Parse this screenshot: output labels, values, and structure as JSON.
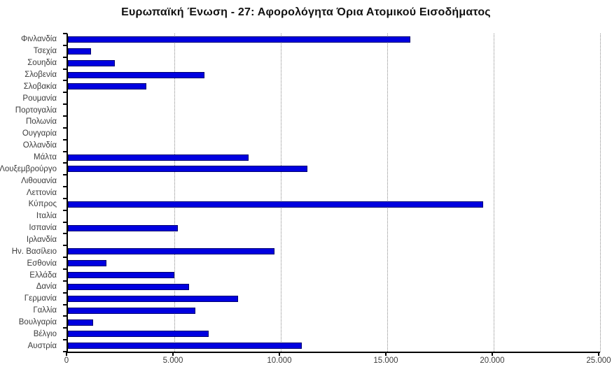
{
  "chart_data": {
    "type": "bar",
    "orientation": "horizontal",
    "title": "Ευρωπαϊκή Ένωση - 27: Αφορολόγητα Όρια Ατομικού Εισοδήματος",
    "categories": [
      "Φινλανδία",
      "Τσεχία",
      "Σουηδία",
      "Σλοβενία",
      "Σλοβακία",
      "Ρουμανία",
      "Πορτογαλία",
      "Πολωνία",
      "Ουγγαρία",
      "Ολλανδία",
      "Μάλτα",
      "Λουξεμβρούργο",
      "Λιθουανία",
      "Λεττονία",
      "Κύπρος",
      "Ιταλία",
      "Ισπανία",
      "Ιρλανδία",
      "Ην. Βασίλειο",
      "Εσθονία",
      "Ελλάδα",
      "Δανία",
      "Γερμανία",
      "Γαλλία",
      "Βουλγαρία",
      "Βέλγιο",
      "Αυστρία"
    ],
    "values": [
      16100,
      1100,
      2200,
      6400,
      3700,
      0,
      0,
      0,
      0,
      0,
      8500,
      11250,
      0,
      0,
      19500,
      0,
      5150,
      0,
      9700,
      1800,
      5000,
      5700,
      8000,
      6000,
      1200,
      6600,
      11000
    ],
    "xlim": [
      0,
      25000
    ],
    "x_ticks": [
      0,
      5000,
      10000,
      15000,
      20000,
      25000
    ],
    "x_tick_labels": [
      "0",
      "5.000",
      "10.000",
      "15.000",
      "20.000",
      "25.000"
    ],
    "legend": "none",
    "grid": "vertical-dotted",
    "bar_color": "#0000e0",
    "bar_border_color": "#000070",
    "axis_color": "#000000",
    "gridline_color": "#8a8a8a",
    "label_color": "#3c3c3c",
    "title_color": "#111111"
  }
}
